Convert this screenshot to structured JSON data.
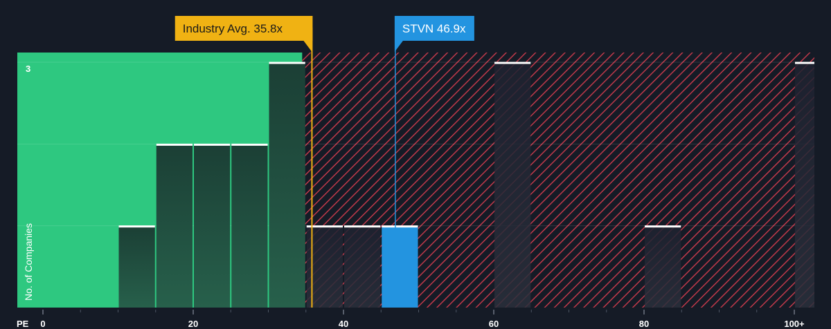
{
  "chart_data": {
    "type": "bar",
    "xlabel": "PE",
    "ylabel": "No. of Companies",
    "x_ticks": [
      "0",
      "20",
      "40",
      "60",
      "80",
      "100+"
    ],
    "y_tick_label": "3",
    "xlim": [
      0,
      102.5
    ],
    "ylim": [
      0,
      3
    ],
    "bin_width": 5,
    "bins": [
      {
        "x0": 10,
        "x1": 15,
        "count": 1
      },
      {
        "x0": 15,
        "x1": 20,
        "count": 2
      },
      {
        "x0": 20,
        "x1": 25,
        "count": 2
      },
      {
        "x0": 25,
        "x1": 30,
        "count": 2
      },
      {
        "x0": 30,
        "x1": 35,
        "count": 3
      },
      {
        "x0": 35,
        "x1": 40,
        "count": 1
      },
      {
        "x0": 40,
        "x1": 45,
        "count": 1
      },
      {
        "x0": 45,
        "x1": 50,
        "count": 1,
        "highlight": true
      },
      {
        "x0": 60,
        "x1": 65,
        "count": 3
      },
      {
        "x0": 80,
        "x1": 85,
        "count": 1
      },
      {
        "x0": 100,
        "x1": 105,
        "count": 3
      }
    ],
    "fair_zone_end": 34.5,
    "industry_avg": {
      "label": "Industry Avg. 35.8x",
      "value": 35.8
    },
    "company": {
      "label": "STVN 46.9x",
      "value": 46.9
    },
    "colors": {
      "background": "#151b26",
      "fair_zone": "#2ec880",
      "overvalued_hatch": "#c0394a",
      "bar_fill": "#1e4a3e",
      "bar_fill_dark": "#232833",
      "highlight_bar": "#2394e0",
      "bar_cap": "#ffffff",
      "industry_marker": "#f0b213",
      "company_marker": "#2394e0"
    }
  }
}
